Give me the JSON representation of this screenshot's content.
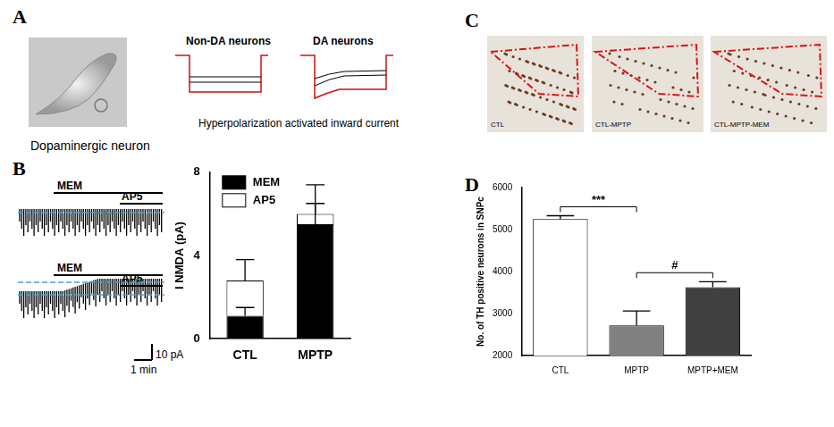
{
  "panels": {
    "A": {
      "label": "A",
      "image_caption": "Dopaminergic neuron",
      "trace_labels": [
        "Non-DA neurons",
        "DA neurons"
      ],
      "trace_caption": "Hyperpolarization activated inward current"
    },
    "B": {
      "label": "B",
      "trace_bars": [
        "MEM",
        "AP5"
      ],
      "scale_bar": [
        "10 pA",
        "1 min"
      ]
    },
    "C": {
      "label": "C",
      "images": [
        "CTL",
        "CTL-MPTP",
        "CTL-MPTP-MEM"
      ]
    },
    "D": {
      "label": "D"
    }
  },
  "chart_data": [
    {
      "type": "bar",
      "stacked": true,
      "categories": [
        "CTL",
        "MPTP"
      ],
      "series": [
        {
          "name": "MEM",
          "color": "#000000",
          "values": [
            1.1,
            5.5
          ],
          "errors": [
            0.4,
            1.0
          ]
        },
        {
          "name": "AP5",
          "color": "#ffffff",
          "values": [
            1.7,
            0.5
          ],
          "errors": [
            1.0,
            1.4
          ]
        }
      ],
      "y_label": "I NMDA (pA)",
      "ylim": [
        0,
        8
      ],
      "yticks": [
        0,
        4,
        8
      ],
      "legend": "upper left",
      "grid": false
    },
    {
      "type": "bar",
      "categories": [
        "CTL",
        "MPTP",
        "MPTP+MEM"
      ],
      "values": [
        5250,
        2720,
        3630
      ],
      "errors": [
        80,
        340,
        130
      ],
      "colors": [
        "#ffffff",
        "#808080",
        "#404040"
      ],
      "y_label": "No. of TH positive neurons in SNPc",
      "ylim": [
        2000,
        6000
      ],
      "yticks": [
        2000,
        3000,
        4000,
        5000,
        6000
      ],
      "grid": false,
      "annotations": [
        {
          "text": "***",
          "from": "CTL",
          "to": "MPTP"
        },
        {
          "text": "#",
          "from": "MPTP",
          "to": "MPTP+MEM"
        }
      ]
    }
  ]
}
